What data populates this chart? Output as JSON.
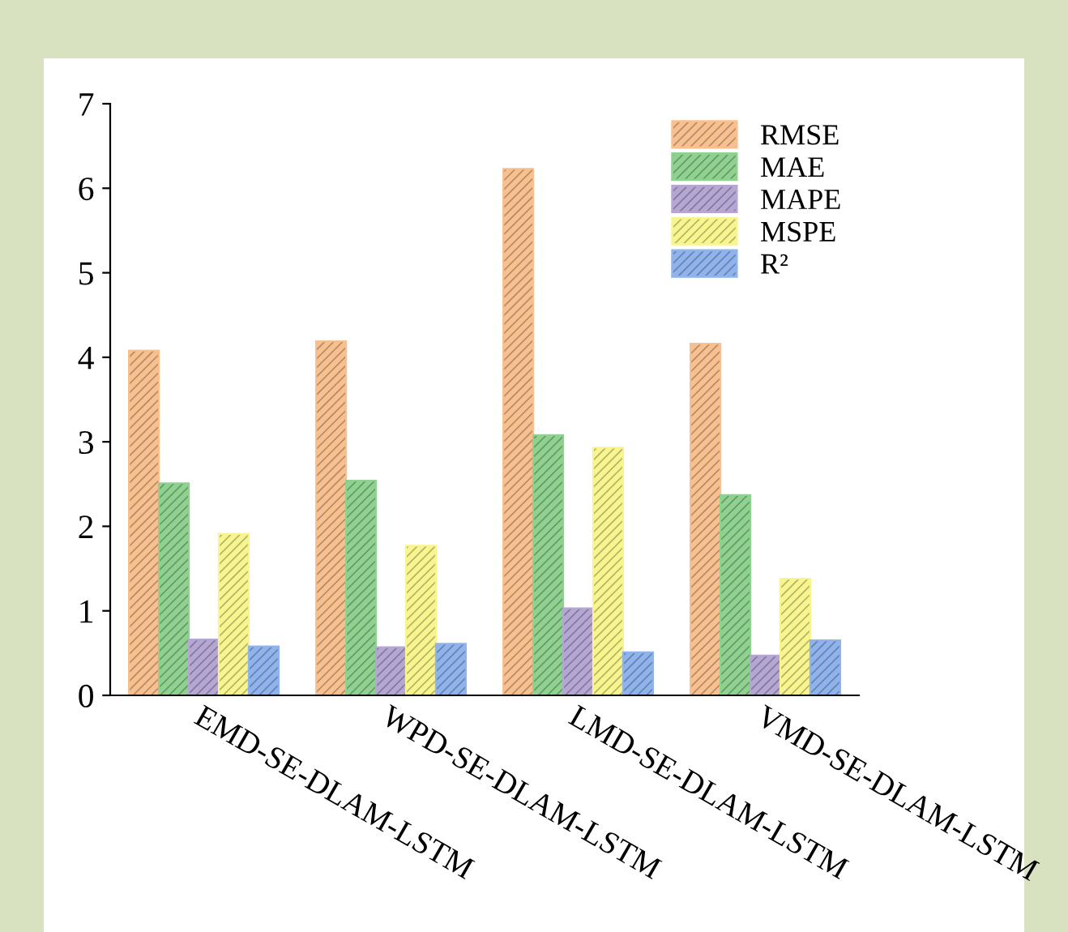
{
  "chart_data": {
    "type": "bar",
    "categories": [
      "EMD-SE-DLAM-LSTM",
      "WPD-SE-DLAM-LSTM",
      "LMD-SE-DLAM-LSTM",
      "VMD-SE-DLAM-LSTM"
    ],
    "series": [
      {
        "name": "RMSE",
        "color": "#f9c08f",
        "values": [
          4.08,
          4.19,
          6.23,
          4.16
        ]
      },
      {
        "name": "MAE",
        "color": "#8fd18f",
        "values": [
          2.51,
          2.54,
          3.08,
          2.37
        ]
      },
      {
        "name": "MAPE",
        "color": "#b5a6d4",
        "values": [
          0.66,
          0.57,
          1.03,
          0.47
        ]
      },
      {
        "name": "MSPE",
        "color": "#f8f58f",
        "values": [
          1.91,
          1.77,
          2.93,
          1.38
        ]
      },
      {
        "name": "R²",
        "color": "#8fb3ec",
        "values": [
          0.58,
          0.61,
          0.51,
          0.65
        ]
      }
    ],
    "ylim": [
      0,
      7
    ],
    "yticks": [
      0,
      1,
      2,
      3,
      4,
      5,
      6,
      7
    ],
    "grid": false,
    "legend": "top right"
  }
}
